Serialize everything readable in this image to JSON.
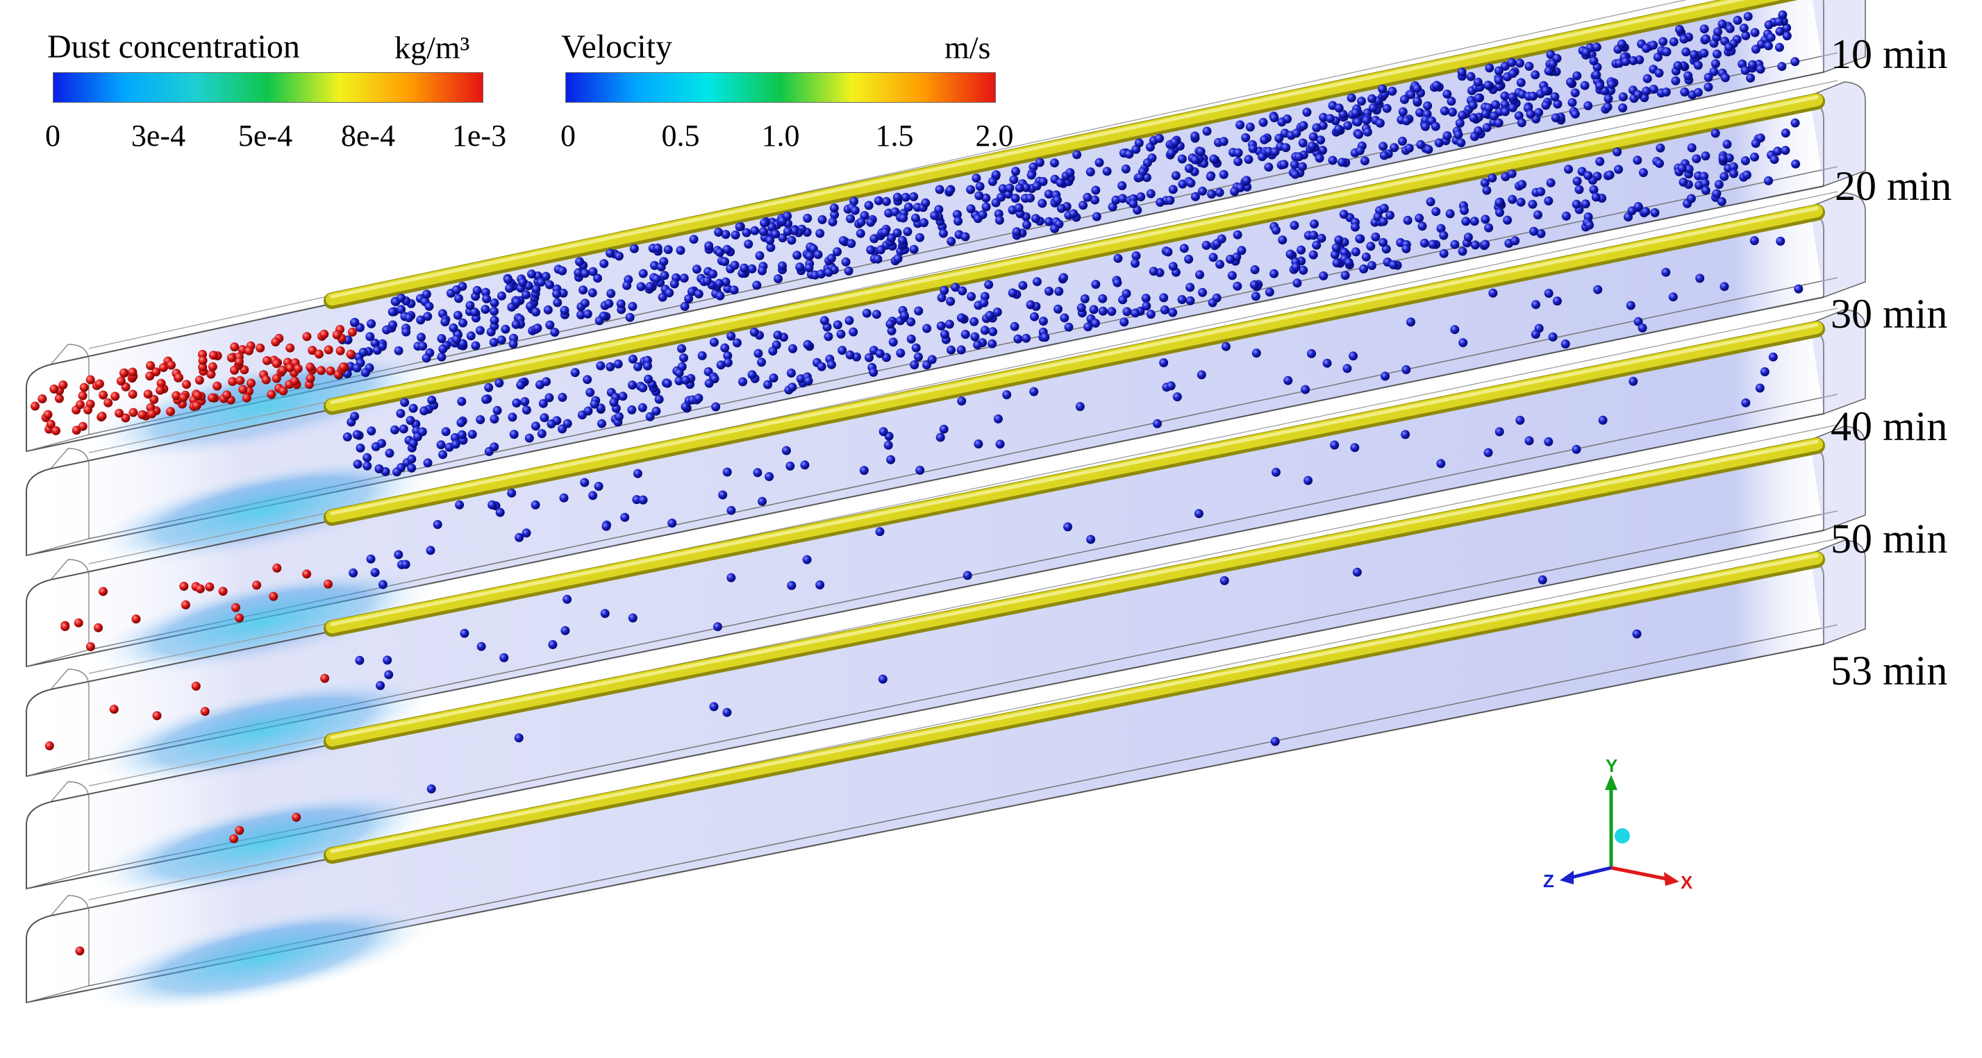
{
  "legends": {
    "dust": {
      "title": "Dust concentration",
      "unit": "kg/m³",
      "ticks": [
        "0",
        "3e-4",
        "5e-4",
        "8e-4",
        "1e-3"
      ],
      "colors": [
        "#0a1ee6",
        "#00a8ff",
        "#1ed0d0",
        "#10c64a",
        "#f2f21e",
        "#ff9a00",
        "#e61414"
      ]
    },
    "velocity": {
      "title": "Velocity",
      "unit": "m/s",
      "ticks": [
        "0",
        "0.5",
        "1.0",
        "1.5",
        "2.0"
      ],
      "colors": [
        "#0a1ee6",
        "#00a8ff",
        "#00e6e6",
        "#10c64a",
        "#f2f21e",
        "#ff9a00",
        "#e61414"
      ]
    }
  },
  "tunnels": [
    {
      "time": "10 min",
      "particles": 900,
      "dust_particles": 150
    },
    {
      "time": "20 min",
      "particles": 520,
      "dust_particles": 0
    },
    {
      "time": "30 min",
      "particles": 90,
      "dust_particles": 20
    },
    {
      "time": "40 min",
      "particles": 40,
      "dust_particles": 6
    },
    {
      "time": "50 min",
      "particles": 8,
      "dust_particles": 3
    },
    {
      "time": "53 min",
      "particles": 2,
      "dust_particles": 1
    }
  ],
  "axis_triad": {
    "x": "X",
    "y": "Y",
    "z": "Z"
  },
  "colors": {
    "particle": "#1a22cc",
    "dust_particle": "#e01818",
    "duct": "#d7d21e",
    "tunnel_fill": "#b9bff0",
    "dust_cloud": "#3fc7e8"
  }
}
